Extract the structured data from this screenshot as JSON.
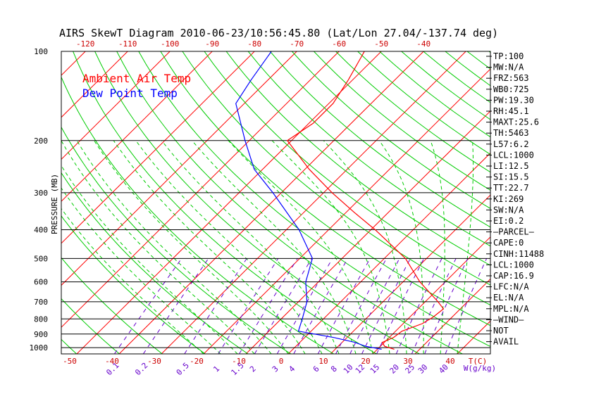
{
  "chart_data": {
    "type": "line",
    "title": "AIRS SkewT Diagram 2010-06-23/10:56:45.80 (Lat/Lon 27.04/-137.74 deg)",
    "ylabel": "PRESSURE (MB)",
    "xlabel": "T(C)",
    "mixing_ratio_label": "W(g/kg)",
    "y_scale": "log",
    "ylim": [
      1050,
      100
    ],
    "pressure_ticks": [
      100,
      200,
      300,
      400,
      500,
      600,
      700,
      800,
      900,
      1000
    ],
    "temp_ticks_bottom": [
      -50,
      -40,
      -30,
      -20,
      -10,
      0,
      10,
      20,
      30,
      40
    ],
    "temp_ticks_top": [
      -120,
      -110,
      -100,
      -90,
      -80,
      -70,
      -60,
      -50,
      -40
    ],
    "mixing_ratio_ticks": [
      "0.1",
      "0.2",
      "0.5",
      "1",
      "1.5",
      "2",
      "3",
      "4",
      "6",
      "8",
      "10",
      "12",
      "15",
      "20",
      "25",
      "30",
      "40"
    ],
    "legend": [
      {
        "name": "Ambient Air Temp",
        "color": "#ff0000"
      },
      {
        "name": "Dew Point Temp",
        "color": "#0000ff"
      }
    ],
    "colors": {
      "isotherm": "#ff0000",
      "dry_adiabat": "#00cc00",
      "moist_adiabat": "#00cc00",
      "mixing_ratio": "#6600cc",
      "temp_axis": "#cc0000",
      "pressure_axis": "#000000"
    },
    "series": [
      {
        "name": "Ambient Air Temp",
        "points": [
          {
            "p": 1013,
            "t": 24
          },
          {
            "p": 990,
            "t": 21
          },
          {
            "p": 960,
            "t": 19.5
          },
          {
            "p": 925,
            "t": 21
          },
          {
            "p": 880,
            "t": 21.5
          },
          {
            "p": 830,
            "t": 24.5
          },
          {
            "p": 790,
            "t": 25.5
          },
          {
            "p": 740,
            "t": 26
          },
          {
            "p": 700,
            "t": 23
          },
          {
            "p": 600,
            "t": 14
          },
          {
            "p": 500,
            "t": 5
          },
          {
            "p": 400,
            "t": -9
          },
          {
            "p": 350,
            "t": -18
          },
          {
            "p": 300,
            "t": -28
          },
          {
            "p": 250,
            "t": -39
          },
          {
            "p": 200,
            "t": -51
          },
          {
            "p": 175,
            "t": -49
          },
          {
            "p": 150,
            "t": -49
          },
          {
            "p": 125,
            "t": -51
          },
          {
            "p": 100,
            "t": -54
          }
        ]
      },
      {
        "name": "Dew Point Temp",
        "points": [
          {
            "p": 1013,
            "t": 21
          },
          {
            "p": 990,
            "t": 16.5
          },
          {
            "p": 960,
            "t": 13
          },
          {
            "p": 925,
            "t": 7
          },
          {
            "p": 880,
            "t": -3
          },
          {
            "p": 800,
            "t": -5
          },
          {
            "p": 700,
            "t": -8
          },
          {
            "p": 600,
            "t": -13
          },
          {
            "p": 500,
            "t": -17
          },
          {
            "p": 400,
            "t": -27
          },
          {
            "p": 300,
            "t": -42
          },
          {
            "p": 250,
            "t": -52
          },
          {
            "p": 200,
            "t": -61
          },
          {
            "p": 150,
            "t": -72
          },
          {
            "p": 125,
            "t": -74
          },
          {
            "p": 100,
            "t": -76
          }
        ]
      }
    ]
  },
  "indices": [
    "TP:100",
    "MW:N/A",
    "FRZ:563",
    "WB0:725",
    "PW:19.30",
    "RH:45.1",
    "MAXT:25.6",
    "TH:5463",
    "L57:6.2",
    "LCL:1000",
    "LI:12.5",
    "SI:15.5",
    "TT:22.7",
    "KI:269",
    "SW:N/A",
    "EI:0.2",
    "—PARCEL—",
    "CAPE:0",
    "CINH:11488",
    "LCL:1000",
    "CAP:16.9",
    "LFC:N/A",
    "EL:N/A",
    "MPL:N/A",
    "—WIND—",
    " NOT",
    " AVAIL"
  ]
}
